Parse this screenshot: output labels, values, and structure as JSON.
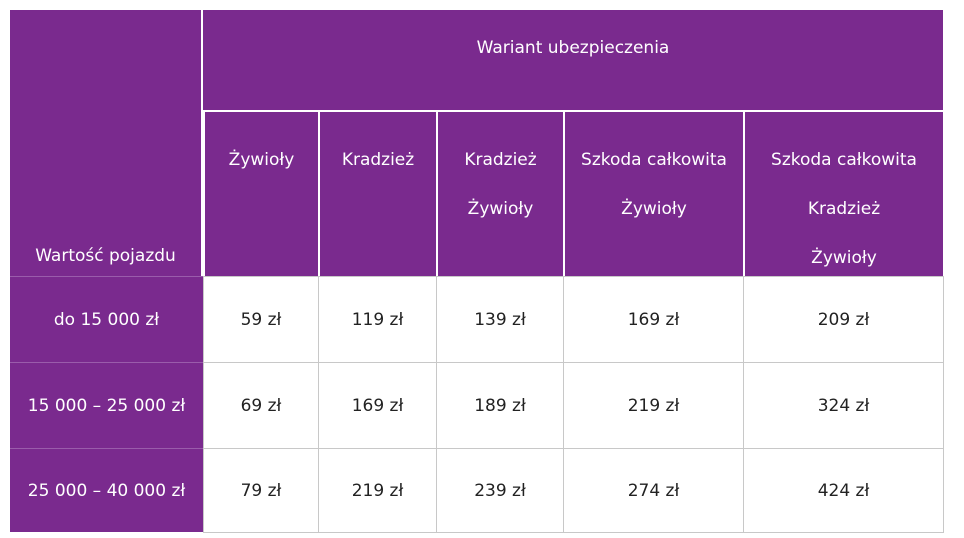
{
  "header": {
    "row_label": "Wartość pojazdu",
    "group": "Wariant ubezpieczenia",
    "columns": [
      [
        "Żywioły"
      ],
      [
        "Kradzież"
      ],
      [
        "Kradzież",
        "Żywioły"
      ],
      [
        "Szkoda całkowita",
        "Żywioły"
      ],
      [
        "Szkoda całkowita",
        "Kradzież",
        "Żywioły"
      ]
    ]
  },
  "table": {
    "rows": [
      {
        "label": "do 15 000 zł",
        "values": [
          "59 zł",
          "119 zł",
          "139 zł",
          "169 zł",
          "209 zł"
        ]
      },
      {
        "label": "15 000 – 25 000 zł",
        "values": [
          "69 zł",
          "169 zł",
          "189 zł",
          "219 zł",
          "324 zł"
        ]
      },
      {
        "label": "25 000 – 40 000 zł",
        "values": [
          "79 zł",
          "219 zł",
          "239 zł",
          "274 zł",
          "424 zł"
        ]
      }
    ]
  }
}
